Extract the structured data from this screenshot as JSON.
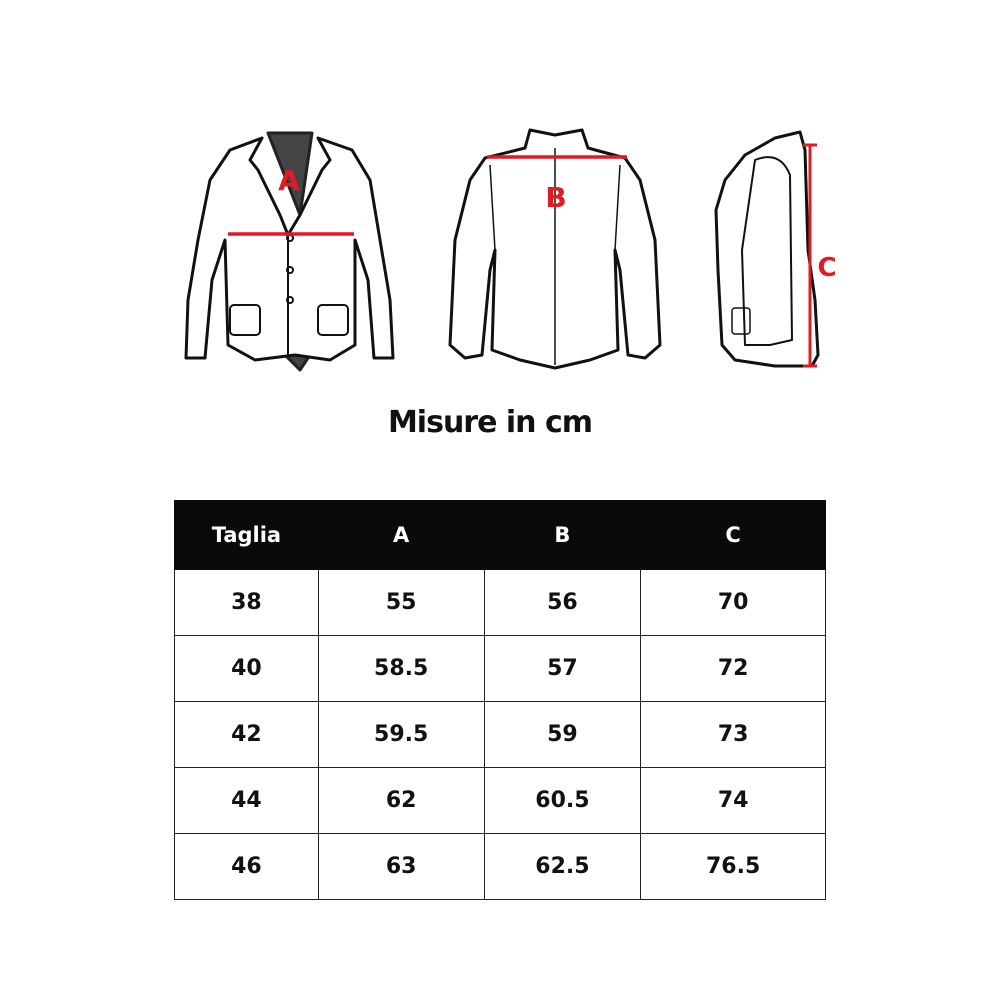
{
  "labels": {
    "a": "A",
    "b": "B",
    "c": "C"
  },
  "accent_color": "#e01b22",
  "title": "Misure in cm",
  "table": {
    "headers": [
      "Taglia",
      "A",
      "B",
      "C"
    ],
    "rows": [
      [
        "38",
        "55",
        "56",
        "70"
      ],
      [
        "40",
        "58.5",
        "57",
        "72"
      ],
      [
        "42",
        "59.5",
        "59",
        "73"
      ],
      [
        "44",
        "62",
        "60.5",
        "74"
      ],
      [
        "46",
        "63",
        "62.5",
        "76.5"
      ]
    ]
  }
}
